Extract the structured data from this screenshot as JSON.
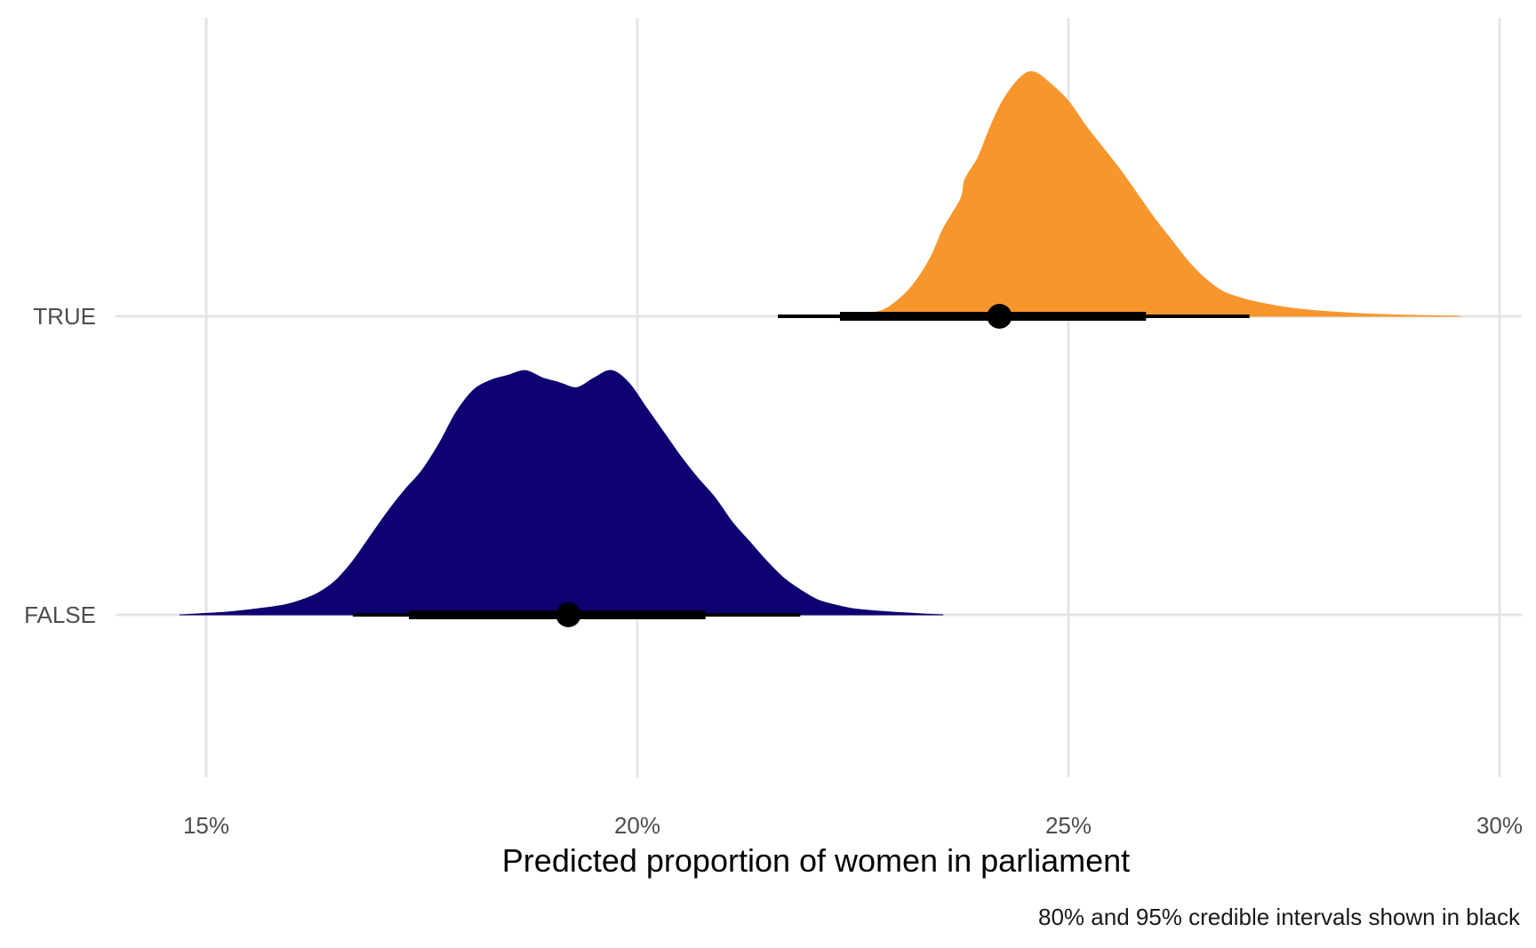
{
  "chart_data": {
    "type": "density",
    "xlabel": "Predicted proportion of women in parliament",
    "caption": "80% and 95% credible intervals shown in black",
    "x_ticks": [
      {
        "value": 0.15,
        "label": "15%"
      },
      {
        "value": 0.2,
        "label": "20%"
      },
      {
        "value": 0.25,
        "label": "25%"
      },
      {
        "value": 0.3,
        "label": "30%"
      }
    ],
    "xlim": [
      0.14,
      0.3
    ],
    "categories": [
      "TRUE",
      "FALSE"
    ],
    "series": [
      {
        "name": "TRUE",
        "color": "#F8962E",
        "point": 0.242,
        "interval_80": [
          0.2235,
          0.259
        ],
        "interval_95": [
          0.2163,
          0.271
        ],
        "density_x": [
          0.2195,
          0.2245,
          0.228,
          0.23,
          0.232,
          0.234,
          0.2355,
          0.2375,
          0.238,
          0.2395,
          0.241,
          0.2425,
          0.2445,
          0.246,
          0.248,
          0.25,
          0.252,
          0.254,
          0.256,
          0.258,
          0.26,
          0.262,
          0.264,
          0.266,
          0.268,
          0.2705,
          0.273,
          0.2755,
          0.278,
          0.281,
          0.285,
          0.29,
          0.2955
        ],
        "density_y": [
          0.0,
          0.006,
          0.02,
          0.06,
          0.13,
          0.24,
          0.36,
          0.48,
          0.56,
          0.65,
          0.78,
          0.89,
          0.98,
          1.0,
          0.95,
          0.88,
          0.78,
          0.69,
          0.6,
          0.5,
          0.4,
          0.31,
          0.22,
          0.15,
          0.1,
          0.07,
          0.05,
          0.035,
          0.025,
          0.017,
          0.009,
          0.004,
          0.0
        ]
      },
      {
        "name": "FALSE",
        "color": "#0D0070",
        "point": 0.192,
        "interval_80": [
          0.1735,
          0.2079
        ],
        "interval_95": [
          0.167,
          0.2189
        ],
        "density_x": [
          0.1469,
          0.152,
          0.156,
          0.159,
          0.161,
          0.163,
          0.165,
          0.167,
          0.169,
          0.171,
          0.173,
          0.175,
          0.177,
          0.179,
          0.181,
          0.183,
          0.185,
          0.187,
          0.189,
          0.191,
          0.193,
          0.195,
          0.197,
          0.199,
          0.201,
          0.203,
          0.205,
          0.207,
          0.209,
          0.211,
          0.213,
          0.215,
          0.217,
          0.219,
          0.221,
          0.223,
          0.225,
          0.228,
          0.231,
          0.2335,
          0.2355
        ],
        "density_y": [
          0.0,
          0.01,
          0.025,
          0.04,
          0.06,
          0.09,
          0.14,
          0.22,
          0.32,
          0.42,
          0.51,
          0.59,
          0.7,
          0.83,
          0.92,
          0.96,
          0.98,
          1.0,
          0.97,
          0.95,
          0.93,
          0.97,
          1.0,
          0.95,
          0.85,
          0.75,
          0.65,
          0.56,
          0.48,
          0.38,
          0.3,
          0.22,
          0.15,
          0.1,
          0.06,
          0.04,
          0.025,
          0.015,
          0.008,
          0.003,
          0.0
        ]
      }
    ]
  }
}
